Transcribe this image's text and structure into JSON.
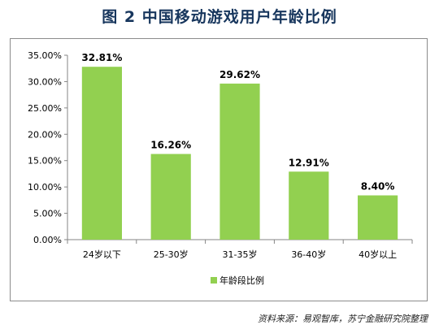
{
  "figure_title": "图 2 中国移动游戏用户年龄比例",
  "source": "资料来源：易观智库，苏宁金融研究院整理",
  "colors": {
    "bar": "#92d050",
    "axis": "#868686",
    "title": "#17365d"
  },
  "chart_data": {
    "type": "bar",
    "categories": [
      "24岁以下",
      "25-30岁",
      "31-35岁",
      "36-40岁",
      "40岁以上"
    ],
    "series": [
      {
        "name": "年龄段比例",
        "values": [
          32.81,
          16.26,
          29.62,
          12.91,
          8.4
        ]
      }
    ],
    "data_labels": [
      "32.81%",
      "16.26%",
      "29.62%",
      "12.91%",
      "8.40%"
    ],
    "yticks": [
      "0.00%",
      "5.00%",
      "10.00%",
      "15.00%",
      "20.00%",
      "25.00%",
      "30.00%",
      "35.00%"
    ],
    "ylim": [
      0,
      35
    ],
    "grid": false,
    "legend_position": "bottom"
  }
}
